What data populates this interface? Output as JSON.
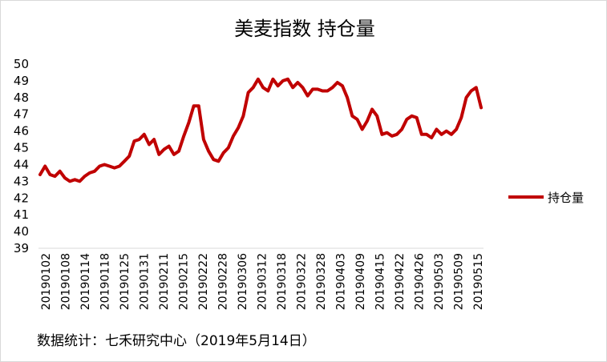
{
  "chart_data": {
    "type": "line",
    "title": "美麦指数  持仓量",
    "ylim": [
      39,
      50
    ],
    "yticks": [
      "39",
      "40",
      "41",
      "42",
      "43",
      "44",
      "45",
      "46",
      "47",
      "48",
      "49",
      "50"
    ],
    "xtick_labels": [
      "20190102",
      "20190108",
      "20190114",
      "20190118",
      "20190125",
      "20190131",
      "20190211",
      "20190215",
      "20190222",
      "20190228",
      "20190306",
      "20190312",
      "20190318",
      "20190322",
      "20190328",
      "20190403",
      "20190409",
      "20190415",
      "20190422",
      "20190426",
      "20190503",
      "20190509",
      "20190515"
    ],
    "grid": false,
    "legend_position": "right",
    "series": [
      {
        "name": "持仓量",
        "color": "#c00000",
        "values": [
          43.4,
          43.9,
          43.4,
          43.3,
          43.6,
          43.2,
          43.0,
          43.1,
          43.0,
          43.3,
          43.5,
          43.6,
          43.9,
          44.0,
          43.9,
          43.8,
          43.9,
          44.2,
          44.5,
          45.4,
          45.5,
          45.8,
          45.2,
          45.5,
          44.6,
          44.9,
          45.1,
          44.6,
          44.8,
          45.7,
          46.5,
          47.5,
          47.5,
          45.5,
          44.8,
          44.3,
          44.2,
          44.7,
          45.0,
          45.7,
          46.2,
          46.9,
          48.3,
          48.6,
          49.1,
          48.6,
          48.4,
          49.1,
          48.7,
          49.0,
          49.1,
          48.6,
          48.9,
          48.6,
          48.1,
          48.5,
          48.5,
          48.4,
          48.4,
          48.6,
          48.9,
          48.7,
          48.0,
          46.9,
          46.7,
          46.1,
          46.6,
          47.3,
          46.9,
          45.8,
          45.9,
          45.7,
          45.8,
          46.1,
          46.7,
          46.9,
          46.8,
          45.8,
          45.8,
          45.6,
          46.1,
          45.8,
          46.0,
          45.8,
          46.1,
          46.8,
          48.0,
          48.4,
          48.6,
          47.4
        ]
      }
    ]
  },
  "source_note": "数据统计：七禾研究中心（2019年5月14日）"
}
